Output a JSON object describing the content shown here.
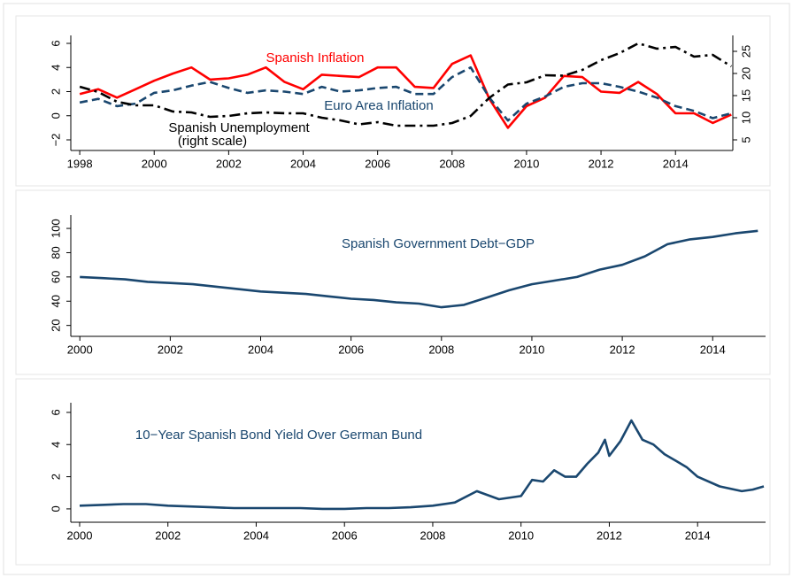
{
  "chart_data": [
    {
      "type": "line",
      "x": [
        1998.0,
        1998.5,
        1999.0,
        1999.5,
        2000.0,
        2000.5,
        2001.0,
        2001.5,
        2002.0,
        2002.5,
        2003.0,
        2003.5,
        2004.0,
        2004.5,
        2005.0,
        2005.5,
        2006.0,
        2006.5,
        2007.0,
        2007.5,
        2008.0,
        2008.5,
        2009.0,
        2009.5,
        2010.0,
        2010.5,
        2011.0,
        2011.5,
        2012.0,
        2012.5,
        2013.0,
        2013.5,
        2014.0,
        2014.5,
        2015.0,
        2015.5
      ],
      "series": [
        {
          "name": "Spanish Inflation",
          "color": "#ff0000",
          "style": "solid",
          "values": [
            1.8,
            2.2,
            1.5,
            2.2,
            2.9,
            3.5,
            4.0,
            3.0,
            3.1,
            3.4,
            4.0,
            2.8,
            2.2,
            3.4,
            3.3,
            3.2,
            4.0,
            4.0,
            2.4,
            2.3,
            4.3,
            5.0,
            1.4,
            -1.0,
            0.8,
            1.5,
            3.3,
            3.2,
            2.0,
            1.9,
            2.8,
            1.8,
            0.2,
            0.2,
            -0.6,
            0.1
          ]
        },
        {
          "name": "Euro Area Inflation",
          "color": "#1a476f",
          "style": "dashed",
          "values": [
            1.1,
            1.4,
            0.8,
            1.0,
            1.9,
            2.1,
            2.5,
            2.8,
            2.3,
            1.9,
            2.1,
            2.0,
            1.8,
            2.4,
            2.0,
            2.1,
            2.3,
            2.4,
            1.8,
            1.8,
            3.2,
            4.0,
            1.5,
            -0.4,
            1.0,
            1.6,
            2.4,
            2.7,
            2.7,
            2.4,
            2.0,
            1.5,
            0.8,
            0.4,
            -0.2,
            0.2
          ]
        },
        {
          "name": "Spanish Unemployment",
          "color": "#000000",
          "style": "dash-dot",
          "axis": "y2",
          "values": [
            17.0,
            15.8,
            13.6,
            12.8,
            12.8,
            11.4,
            11.2,
            10.2,
            10.4,
            11.0,
            11.2,
            11.0,
            11.0,
            10.0,
            9.4,
            8.5,
            9.0,
            8.2,
            8.2,
            8.2,
            8.8,
            10.4,
            14.5,
            17.5,
            18.0,
            19.6,
            19.5,
            20.8,
            23.0,
            24.6,
            26.8,
            25.6,
            26.0,
            23.8,
            24.2,
            21.6
          ]
        }
      ],
      "annotation": "(right scale)",
      "xlim": [
        1997.76,
        2015.54
      ],
      "xticks": [
        1998,
        2000,
        2002,
        2004,
        2006,
        2008,
        2010,
        2012,
        2014
      ],
      "ylim": [
        -2.88,
        6.66
      ],
      "yticks": [
        {
          "value": -2,
          "label": "−2"
        },
        0,
        2,
        4,
        6
      ],
      "y2lim": [
        2.6,
        28.6
      ],
      "y2ticks": [
        5,
        10,
        15,
        20,
        25
      ]
    },
    {
      "type": "line",
      "x": [
        2000.0,
        2000.5,
        2001.0,
        2001.5,
        2002.0,
        2002.5,
        2003.0,
        2003.5,
        2004.0,
        2004.5,
        2005.0,
        2005.5,
        2006.0,
        2006.5,
        2007.0,
        2007.5,
        2008.0,
        2008.5,
        2009.0,
        2009.5,
        2010.0,
        2010.5,
        2011.0,
        2011.5,
        2012.0,
        2012.5,
        2013.0,
        2013.5,
        2014.0,
        2014.5,
        2015.0
      ],
      "series": [
        {
          "name": "Spanish Government Debt−GDP",
          "color": "#1a476f",
          "style": "solid",
          "values": [
            60,
            59,
            58,
            56,
            55,
            54,
            52,
            50,
            48,
            47,
            46,
            44,
            42,
            41,
            39,
            38,
            35,
            37,
            43,
            49,
            54,
            57,
            60,
            66,
            70,
            77,
            87,
            91,
            93,
            96,
            98
          ]
        }
      ],
      "xlim": [
        1999.8,
        2015.17
      ],
      "xticks": [
        2000,
        2002,
        2004,
        2006,
        2008,
        2010,
        2012,
        2014
      ],
      "ylim": [
        11,
        111
      ],
      "yticks": [
        20,
        40,
        60,
        80,
        100
      ]
    },
    {
      "type": "line",
      "x": [
        2000.0,
        2000.5,
        2001.0,
        2001.5,
        2002.0,
        2002.5,
        2003.0,
        2003.5,
        2004.0,
        2004.5,
        2005.0,
        2005.5,
        2006.0,
        2006.5,
        2007.0,
        2007.5,
        2008.0,
        2008.5,
        2009.0,
        2009.5,
        2010.0,
        2010.25,
        2010.5,
        2010.75,
        2011.0,
        2011.25,
        2011.5,
        2011.75,
        2011.9,
        2012.0,
        2012.25,
        2012.5,
        2012.75,
        2013.0,
        2013.25,
        2013.5,
        2013.75,
        2014.0,
        2014.5,
        2015.0,
        2015.25,
        2015.5
      ],
      "series": [
        {
          "name": "10−Year Spanish Bond Yield Over German Bund",
          "color": "#1a476f",
          "style": "solid",
          "values": [
            0.2,
            0.25,
            0.3,
            0.3,
            0.2,
            0.15,
            0.1,
            0.05,
            0.05,
            0.05,
            0.05,
            0.0,
            0.0,
            0.05,
            0.05,
            0.1,
            0.2,
            0.4,
            1.1,
            0.6,
            0.8,
            1.8,
            1.7,
            2.4,
            2.0,
            2.0,
            2.8,
            3.5,
            4.3,
            3.3,
            4.2,
            5.5,
            4.3,
            4.0,
            3.4,
            3.0,
            2.6,
            2.0,
            1.4,
            1.1,
            1.2,
            1.4
          ]
        }
      ],
      "xlim": [
        1999.8,
        2015.54
      ],
      "xticks": [
        2000,
        2002,
        2004,
        2006,
        2008,
        2010,
        2012,
        2014
      ],
      "ylim": [
        -0.83,
        6.6
      ],
      "yticks": [
        0,
        2,
        4,
        6
      ]
    }
  ]
}
